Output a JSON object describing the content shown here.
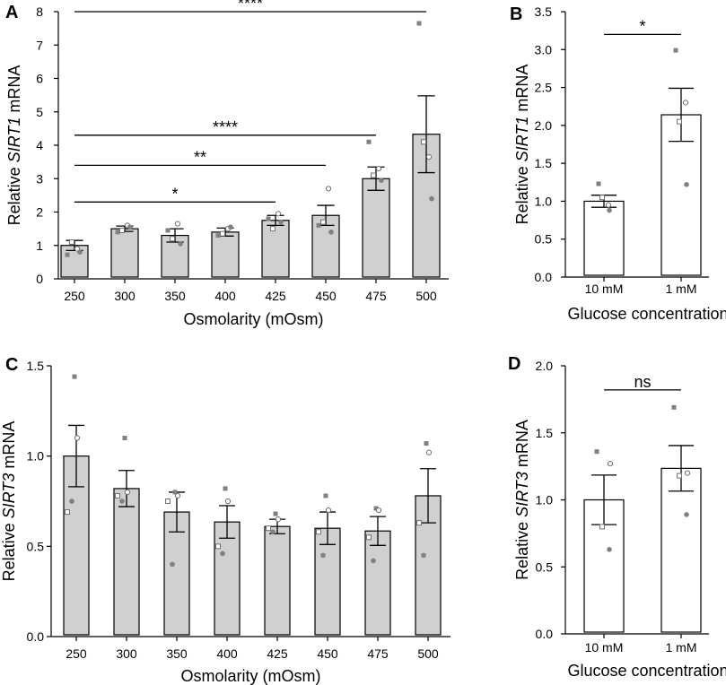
{
  "chart_data": [
    {
      "panel": "A",
      "type": "bar",
      "bar_color": "#d0d0d0",
      "categories": [
        "250",
        "300",
        "350",
        "400",
        "425",
        "450",
        "475",
        "500"
      ],
      "values": [
        1.0,
        1.5,
        1.3,
        1.4,
        1.75,
        1.9,
        3.0,
        4.33
      ],
      "errors": [
        0.15,
        0.08,
        0.2,
        0.12,
        0.15,
        0.3,
        0.35,
        1.15
      ],
      "points": [
        [
          0.72,
          0.9,
          1.1,
          0.8
        ],
        [
          1.4,
          1.6,
          1.45,
          1.55
        ],
        [
          1.45,
          1.65,
          1.2,
          1.05
        ],
        [
          1.3,
          1.5,
          1.35,
          1.55
        ],
        [
          1.8,
          1.95,
          1.5,
          1.7
        ],
        [
          1.6,
          2.7,
          1.7,
          1.4
        ],
        [
          4.1,
          3.3,
          3.1,
          2.95
        ],
        [
          7.65,
          3.65,
          4.1,
          2.4
        ]
      ],
      "ylabel_prefix": "Relative ",
      "ylabel_gene": "SIRT1",
      "ylabel_suffix": " mRNA",
      "xlabel": "Osmolarity (mOsm)",
      "ylim": [
        0,
        8
      ],
      "yticks": [
        "0",
        "1",
        "2",
        "3",
        "4",
        "5",
        "6",
        "7",
        "8"
      ],
      "brackets": [
        {
          "from": "250",
          "to": "500",
          "label": "****",
          "y": 8.0
        },
        {
          "from": "250",
          "to": "475",
          "label": "****",
          "y": 4.3
        },
        {
          "from": "250",
          "to": "450",
          "label": "**",
          "y": 3.4
        },
        {
          "from": "250",
          "to": "425",
          "label": "*",
          "y": 2.3
        }
      ]
    },
    {
      "panel": "B",
      "type": "bar",
      "bar_color": "#ffffff",
      "categories": [
        "10 mM",
        "1 mM"
      ],
      "values": [
        1.0,
        2.14
      ],
      "errors": [
        0.08,
        0.35
      ],
      "points": [
        [
          1.23,
          0.95,
          1.05,
          0.88
        ],
        [
          2.99,
          2.3,
          2.05,
          1.22
        ]
      ],
      "ylabel_prefix": "Relative ",
      "ylabel_gene": "SIRT1",
      "ylabel_suffix": " mRNA",
      "xlabel": "Glucose concentration",
      "ylim": [
        0,
        3.5
      ],
      "yticks": [
        "0.0",
        "0.5",
        "1.0",
        "1.5",
        "2.0",
        "2.5",
        "3.0",
        "3.5"
      ],
      "brackets": [
        {
          "from": "10 mM",
          "to": "1 mM",
          "label": "*",
          "y": 3.2
        }
      ]
    },
    {
      "panel": "C",
      "type": "bar",
      "bar_color": "#d0d0d0",
      "categories": [
        "250",
        "300",
        "350",
        "400",
        "425",
        "450",
        "475",
        "500"
      ],
      "values": [
        1.0,
        0.82,
        0.69,
        0.635,
        0.61,
        0.6,
        0.585,
        0.78
      ],
      "errors": [
        0.17,
        0.1,
        0.11,
        0.09,
        0.04,
        0.09,
        0.08,
        0.15
      ],
      "points": [
        [
          1.44,
          1.1,
          0.69,
          0.75
        ],
        [
          1.1,
          0.8,
          0.78,
          0.75
        ],
        [
          0.8,
          0.78,
          0.75,
          0.4
        ],
        [
          0.82,
          0.75,
          0.5,
          0.46
        ],
        [
          0.68,
          0.65,
          0.6,
          0.58
        ],
        [
          0.78,
          0.7,
          0.58,
          0.45
        ],
        [
          0.71,
          0.7,
          0.55,
          0.42
        ],
        [
          1.07,
          1.02,
          0.63,
          0.45
        ]
      ],
      "ylabel_prefix": "Relative ",
      "ylabel_gene": "SIRT3",
      "ylabel_suffix": " mRNA",
      "xlabel": "Osmolarity (mOsm)",
      "ylim": [
        0,
        1.5
      ],
      "yticks": [
        "0.0",
        "0.5",
        "1.0",
        "1.5"
      ],
      "brackets": []
    },
    {
      "panel": "D",
      "type": "bar",
      "bar_color": "#ffffff",
      "categories": [
        "10 mM",
        "1 mM"
      ],
      "values": [
        1.0,
        1.235
      ],
      "errors": [
        0.185,
        0.17
      ],
      "points": [
        [
          1.36,
          1.27,
          0.8,
          0.63
        ],
        [
          1.69,
          1.2,
          1.18,
          0.89
        ]
      ],
      "ylabel_prefix": "Relative ",
      "ylabel_gene": "SIRT3",
      "ylabel_suffix": " mRNA",
      "xlabel": "Glucose concentration",
      "ylim": [
        0,
        2.0
      ],
      "yticks": [
        "0.0",
        "0.5",
        "1.0",
        "1.5",
        "2.0"
      ],
      "brackets": [
        {
          "from": "10 mM",
          "to": "1 mM",
          "label": "ns",
          "y": 1.82
        }
      ]
    }
  ]
}
